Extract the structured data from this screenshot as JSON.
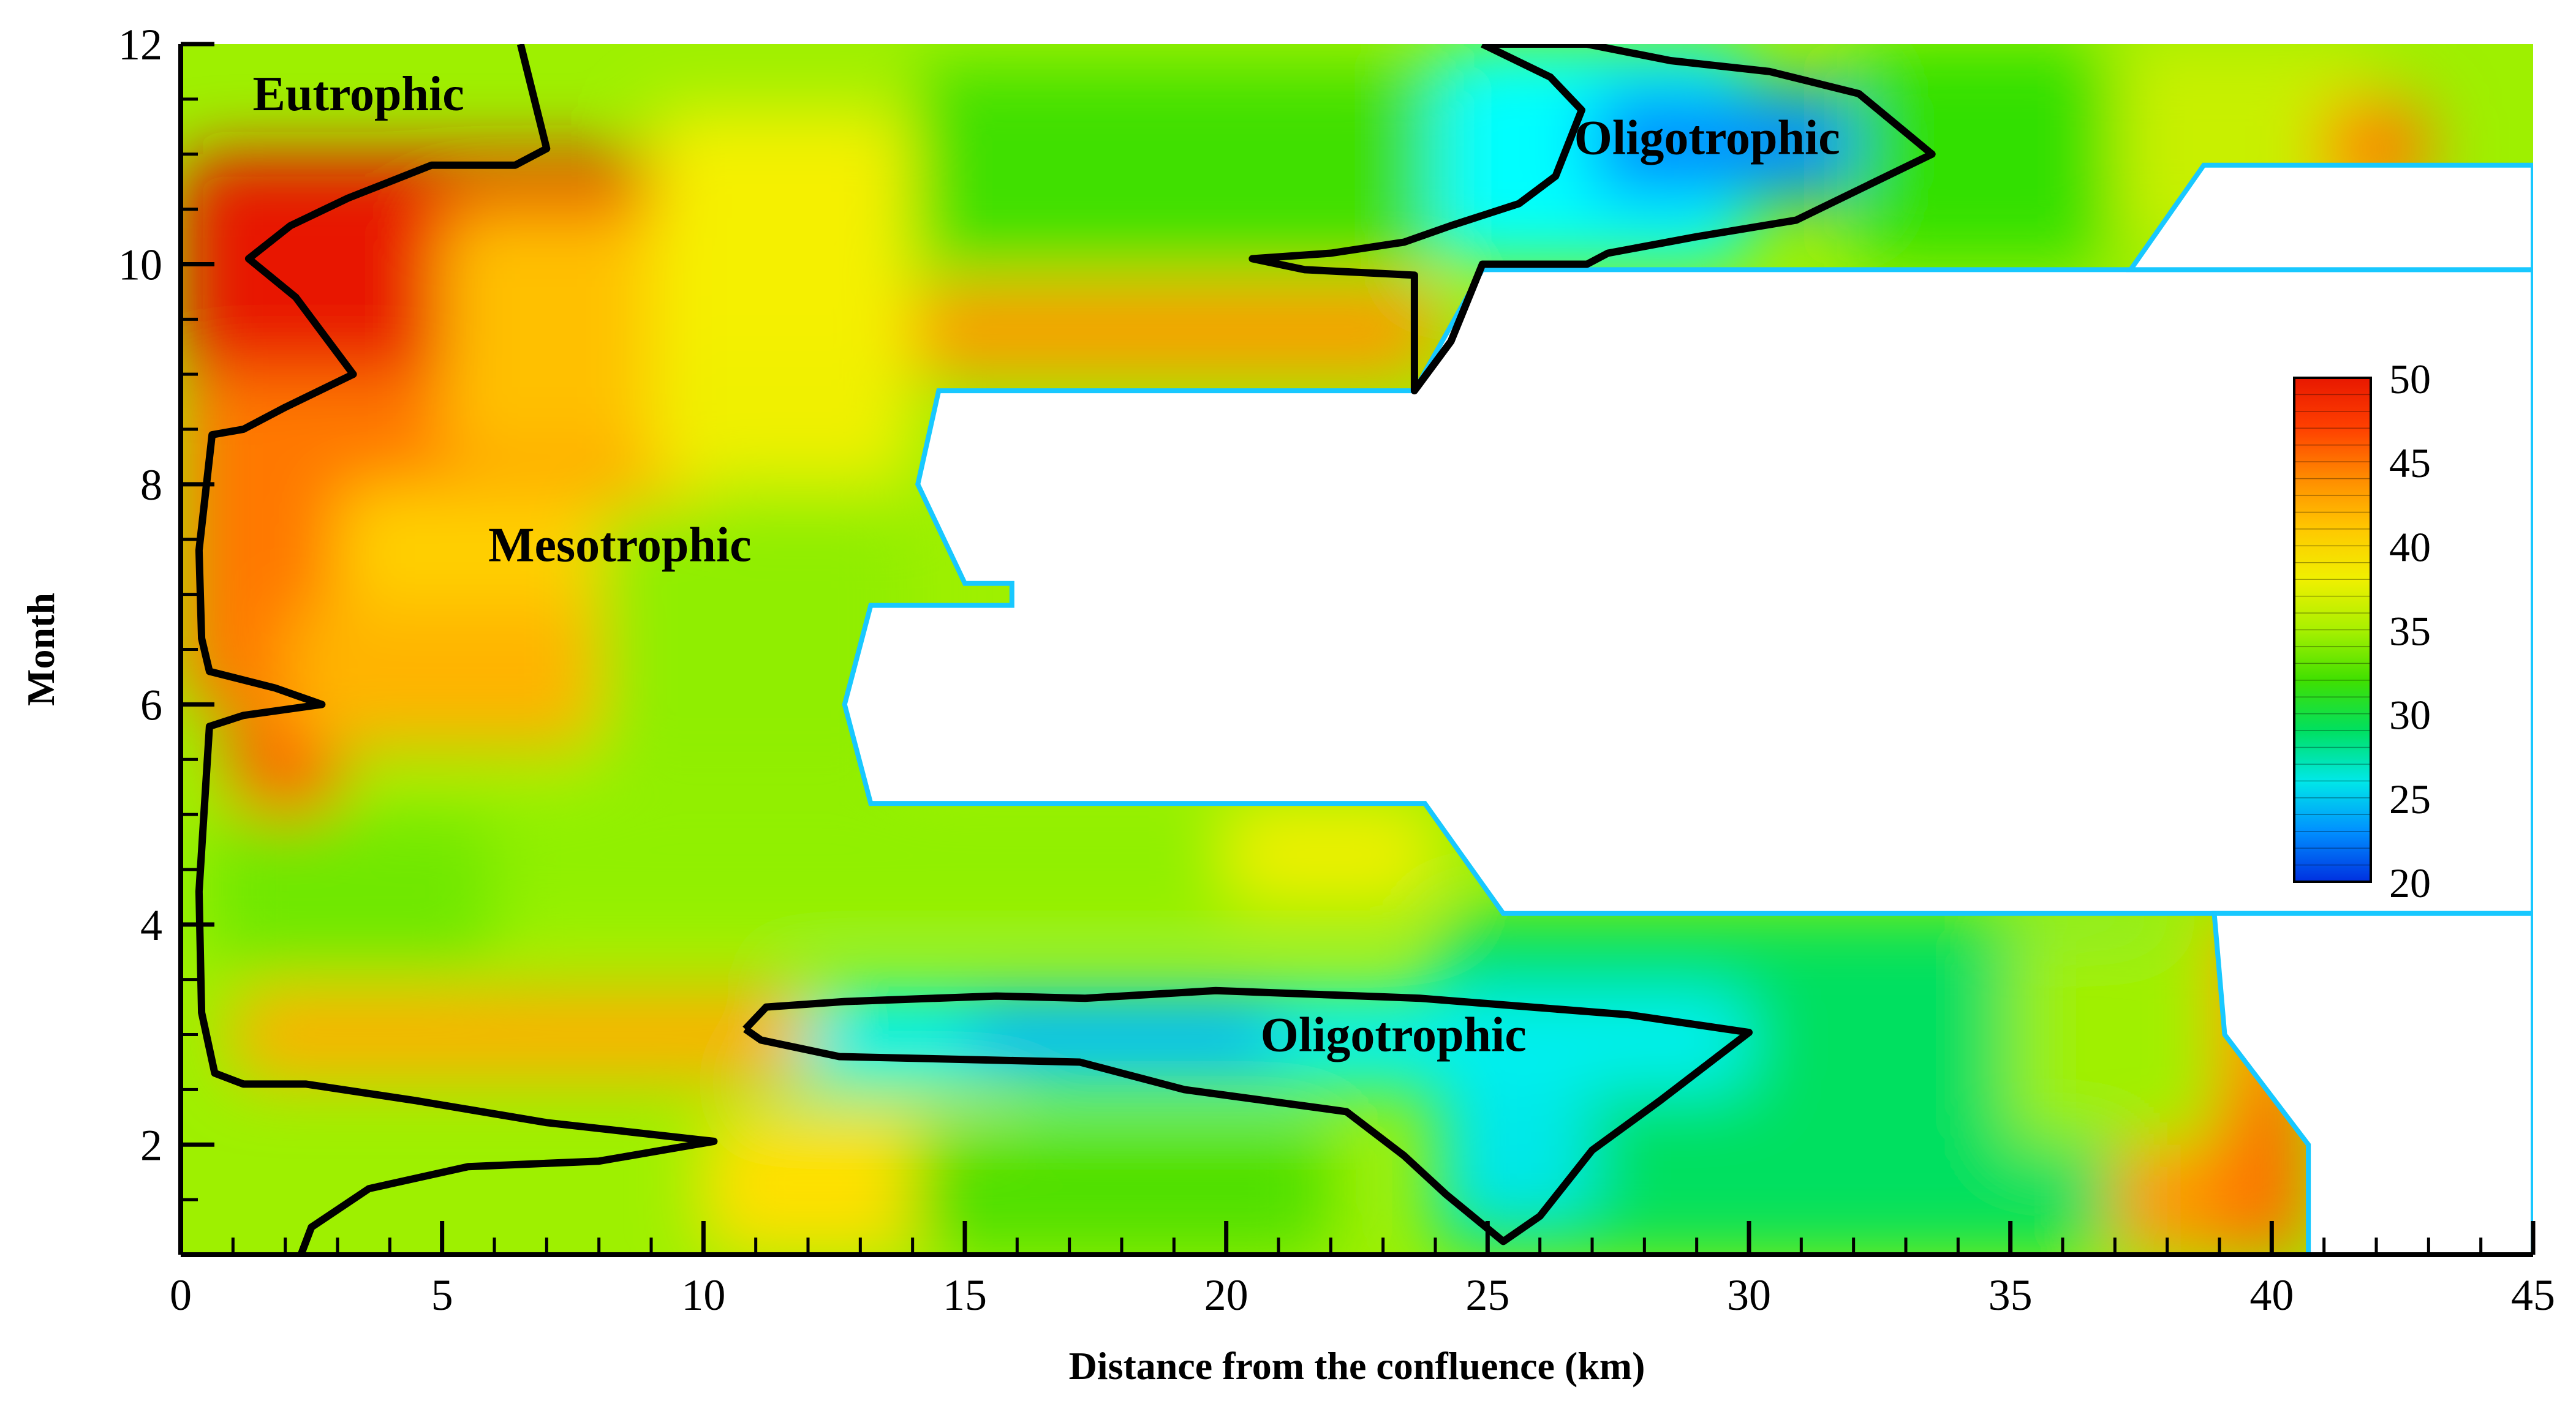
{
  "chart_data": {
    "type": "heatmap",
    "subtype": "filled-contour",
    "xlabel": "Distance from the confluence (km)",
    "ylabel": "Month",
    "xlim": [
      0,
      45
    ],
    "ylim": [
      1,
      12
    ],
    "xticks": [
      0,
      5,
      10,
      15,
      20,
      25,
      30,
      35,
      40,
      45
    ],
    "yticks": [
      2,
      4,
      6,
      8,
      10,
      12
    ],
    "grid": false,
    "colorbar": {
      "min": 20,
      "max": 50,
      "ticks": [
        20,
        25,
        30,
        35,
        40,
        45,
        50
      ],
      "colors": [
        "#0030e0",
        "#0090ff",
        "#00e8e8",
        "#00e060",
        "#40e000",
        "#a8f000",
        "#f0f000",
        "#ffc800",
        "#ff8c00",
        "#ff4000",
        "#e81800"
      ],
      "position": "right"
    },
    "region_labels": [
      {
        "text": "Eutrophic",
        "x": 3.4,
        "y": 11.4
      },
      {
        "text": "Mesotrophic",
        "x": 8.4,
        "y": 7.3
      },
      {
        "text": "Oligotrophic",
        "x": 29.2,
        "y": 11.0
      },
      {
        "text": "Oligotrophic",
        "x": 23.2,
        "y": 2.85
      }
    ],
    "contours": [
      {
        "name": "eutrophic-boundary",
        "level": 50,
        "points": [
          [
            6.5,
            12
          ],
          [
            7,
            11.05
          ],
          [
            6.4,
            10.9
          ],
          [
            4.8,
            10.9
          ],
          [
            3.2,
            10.6
          ],
          [
            2.1,
            10.35
          ],
          [
            1.3,
            10.05
          ],
          [
            2.2,
            9.7
          ],
          [
            3.3,
            9.0
          ],
          [
            2.0,
            8.7
          ],
          [
            1.2,
            8.5
          ],
          [
            0.6,
            8.45
          ],
          [
            0.35,
            7.4
          ],
          [
            0.4,
            6.6
          ],
          [
            0.55,
            6.3
          ],
          [
            1.8,
            6.15
          ],
          [
            2.7,
            6.0
          ],
          [
            1.2,
            5.9
          ],
          [
            0.55,
            5.8
          ],
          [
            0.35,
            4.3
          ],
          [
            0.4,
            3.2
          ],
          [
            0.65,
            2.65
          ],
          [
            1.2,
            2.55
          ],
          [
            2.4,
            2.55
          ],
          [
            4.5,
            2.4
          ],
          [
            7.0,
            2.2
          ],
          [
            10.2,
            2.03
          ],
          [
            8.0,
            1.85
          ],
          [
            5.5,
            1.8
          ],
          [
            3.6,
            1.6
          ],
          [
            2.5,
            1.25
          ],
          [
            2.3,
            1.0
          ]
        ]
      },
      {
        "name": "oligotrophic-boundary-top",
        "level": 30,
        "points": [
          [
            24.9,
            12
          ],
          [
            26.2,
            11.7
          ],
          [
            26.8,
            11.4
          ],
          [
            26.3,
            10.8
          ],
          [
            25.6,
            10.55
          ],
          [
            24.3,
            10.35
          ],
          [
            23.4,
            10.2
          ],
          [
            22.0,
            10.1
          ],
          [
            20.5,
            10.05
          ],
          [
            21.5,
            9.95
          ],
          [
            23.6,
            9.9
          ],
          [
            23.6,
            8.85
          ],
          [
            24.3,
            9.3
          ],
          [
            24.9,
            10.0
          ],
          [
            26.9,
            10.0
          ],
          [
            27.3,
            10.1
          ],
          [
            29.0,
            10.25
          ],
          [
            30.9,
            10.4
          ],
          [
            33.5,
            11.0
          ],
          [
            32.1,
            11.55
          ],
          [
            30.4,
            11.75
          ],
          [
            28.5,
            11.85
          ],
          [
            26.9,
            12.0
          ],
          [
            24.9,
            12
          ]
        ]
      },
      {
        "name": "oligotrophic-boundary-bottom",
        "level": 30,
        "points": [
          [
            10.8,
            3.05
          ],
          [
            11.2,
            3.25
          ],
          [
            12.7,
            3.3
          ],
          [
            15.6,
            3.35
          ],
          [
            17.3,
            3.33
          ],
          [
            19.8,
            3.4
          ],
          [
            23.7,
            3.33
          ],
          [
            27.7,
            3.18
          ],
          [
            30.0,
            3.02
          ],
          [
            28.3,
            2.4
          ],
          [
            27.0,
            1.95
          ],
          [
            26.0,
            1.35
          ],
          [
            25.3,
            1.12
          ],
          [
            24.2,
            1.55
          ],
          [
            23.4,
            1.9
          ],
          [
            22.3,
            2.3
          ],
          [
            19.2,
            2.5
          ],
          [
            17.2,
            2.75
          ],
          [
            12.6,
            2.8
          ],
          [
            11.1,
            2.95
          ],
          [
            10.8,
            3.05
          ]
        ]
      }
    ],
    "masked_regions": [
      {
        "name": "no-data-mid",
        "points": [
          [
            14.5,
            8.85
          ],
          [
            23.6,
            8.85
          ],
          [
            24.9,
            9.95
          ],
          [
            45,
            9.95
          ],
          [
            45,
            4.1
          ],
          [
            25.3,
            4.1
          ],
          [
            23.8,
            5.1
          ],
          [
            13.2,
            5.1
          ],
          [
            12.7,
            6.0
          ],
          [
            13.2,
            6.9
          ],
          [
            15.9,
            6.9
          ],
          [
            15.9,
            7.1
          ],
          [
            15.0,
            7.1
          ],
          [
            14.1,
            8.0
          ],
          [
            14.5,
            8.85
          ]
        ]
      },
      {
        "name": "no-data-right-top",
        "points": [
          [
            37.3,
            9.95
          ],
          [
            38.7,
            10.9
          ],
          [
            45,
            10.9
          ],
          [
            45,
            9.95
          ]
        ]
      },
      {
        "name": "no-data-right-bottom",
        "points": [
          [
            38.9,
            4.1
          ],
          [
            39.1,
            3.0
          ],
          [
            40.7,
            2.0
          ],
          [
            40.7,
            1.0
          ],
          [
            45,
            1.0
          ],
          [
            45,
            4.1
          ]
        ]
      }
    ]
  }
}
